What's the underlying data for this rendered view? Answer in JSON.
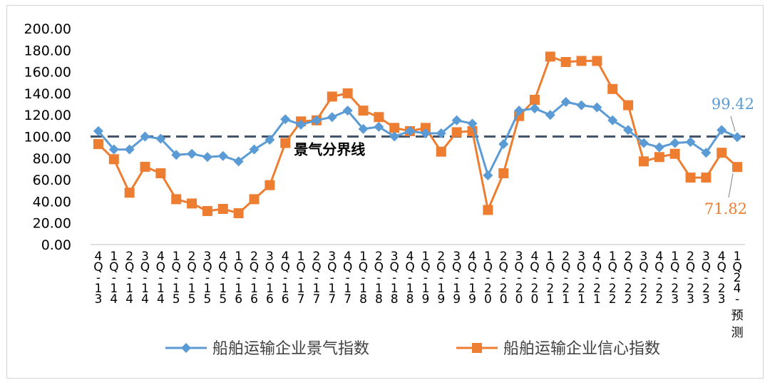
{
  "chart_data": {
    "type": "line",
    "title": "",
    "xlabel": "",
    "ylabel": "",
    "ylim": [
      0,
      200
    ],
    "yticks": [
      "200.00",
      "180.00",
      "160.00",
      "140.00",
      "120.00",
      "100.00",
      "80.00",
      "60.00",
      "40.00",
      "20.00",
      "0.00"
    ],
    "categories": [
      "4Q-13",
      "1Q-14",
      "2Q-14",
      "3Q-14",
      "4Q-14",
      "1Q-15",
      "2Q-15",
      "3Q-15",
      "4Q-15",
      "1Q-16",
      "2Q-16",
      "3Q-16",
      "4Q-16",
      "1Q-17",
      "2Q-17",
      "3Q-17",
      "4Q-17",
      "1Q-18",
      "2Q-18",
      "3Q-18",
      "4Q-18",
      "1Q-19",
      "2Q-19",
      "3Q-19",
      "4Q-19",
      "1Q-20",
      "2Q-20",
      "3Q-20",
      "4Q-20",
      "1Q-21",
      "2Q-21",
      "3Q-21",
      "4Q-21",
      "1Q-22",
      "2Q-22",
      "3Q-22",
      "4Q-22",
      "1Q-23",
      "2Q-23",
      "3Q-23",
      "4Q-23",
      "1Q24-预测"
    ],
    "series": [
      {
        "name": "船舶运输企业景气指数",
        "color": "#5b9bd5",
        "marker": "diamond",
        "values": [
          105,
          88,
          88,
          100,
          98,
          83,
          84,
          81,
          82,
          77,
          88,
          97,
          116,
          111,
          115,
          118,
          124,
          107,
          109,
          100,
          105,
          103,
          103,
          115,
          112,
          64,
          93,
          124,
          126,
          120,
          132,
          129,
          127,
          115,
          106,
          94,
          90,
          94,
          95,
          85,
          106,
          99.42
        ]
      },
      {
        "name": "船舶运输企业信心指数",
        "color": "#ed7d31",
        "marker": "square",
        "values": [
          93,
          79,
          48,
          72,
          66,
          42,
          38,
          31,
          33,
          29,
          42,
          55,
          94,
          114,
          115,
          137,
          140,
          124,
          118,
          108,
          105,
          108,
          86,
          104,
          105,
          32,
          66,
          119,
          134,
          174,
          169,
          170,
          170,
          144,
          129,
          77,
          81,
          84,
          62,
          62,
          85,
          71.82
        ]
      }
    ],
    "reference_line": {
      "value": 100,
      "label": "景气分界线",
      "color": "#44546a"
    },
    "annotations": {
      "last_blue": "99.42",
      "last_orange": "71.82"
    },
    "grid": false,
    "legend_position": "bottom"
  }
}
